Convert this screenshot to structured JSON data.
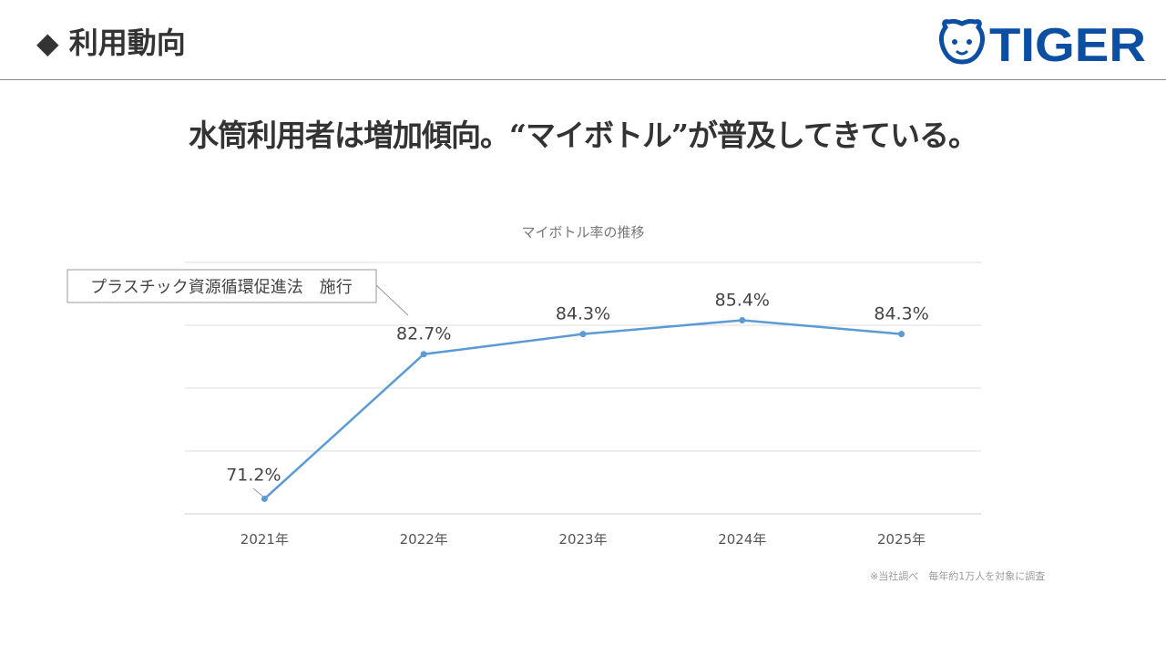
{
  "header": {
    "title": "◆ 利用動向",
    "logo_text": "TIGER"
  },
  "headline": "水筒利用者は増加傾向。“マイボトル”が普及してきている。",
  "footnote": "※当社調べ　毎年約1万人を対象に調査",
  "colors": {
    "line": "#5b9bd5",
    "logo": "#0b4ea2"
  },
  "chart_data": {
    "type": "line",
    "title": "マイボトル率の推移",
    "categories": [
      "2021年",
      "2022年",
      "2023年",
      "2024年",
      "2025年"
    ],
    "values": [
      71.2,
      82.7,
      84.3,
      85.4,
      84.3
    ],
    "data_labels": [
      "71.2%",
      "82.7%",
      "84.3%",
      "85.4%",
      "84.3%"
    ],
    "ylim": [
      70,
      90
    ],
    "grid": true,
    "annotation": "プラスチック資源循環促進法　施行"
  }
}
